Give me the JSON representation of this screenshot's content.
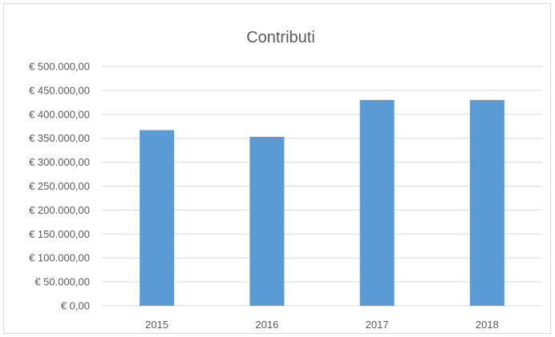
{
  "chart_data": {
    "type": "bar",
    "title": "Contributi",
    "xlabel": "",
    "ylabel": "",
    "categories": [
      "2015",
      "2016",
      "2017",
      "2018"
    ],
    "values": [
      367000,
      353000,
      430000,
      430000
    ],
    "ylim": [
      0,
      500000
    ],
    "ytick_values": [
      0,
      50000,
      100000,
      150000,
      200000,
      250000,
      300000,
      350000,
      400000,
      450000,
      500000
    ],
    "ytick_labels": [
      "€ 0,00",
      "€ 50.000,00",
      "€ 100.000,00",
      "€ 150.000,00",
      "€ 200.000,00",
      "€ 250.000,00",
      "€ 300.000,00",
      "€ 350.000,00",
      "€ 400.000,00",
      "€ 450.000,00",
      "€ 500.000,00"
    ],
    "grid": true,
    "legend": "none",
    "colors": {
      "bar": "#5b9bd5",
      "grid": "#d9d9d9",
      "text": "#595959"
    }
  }
}
